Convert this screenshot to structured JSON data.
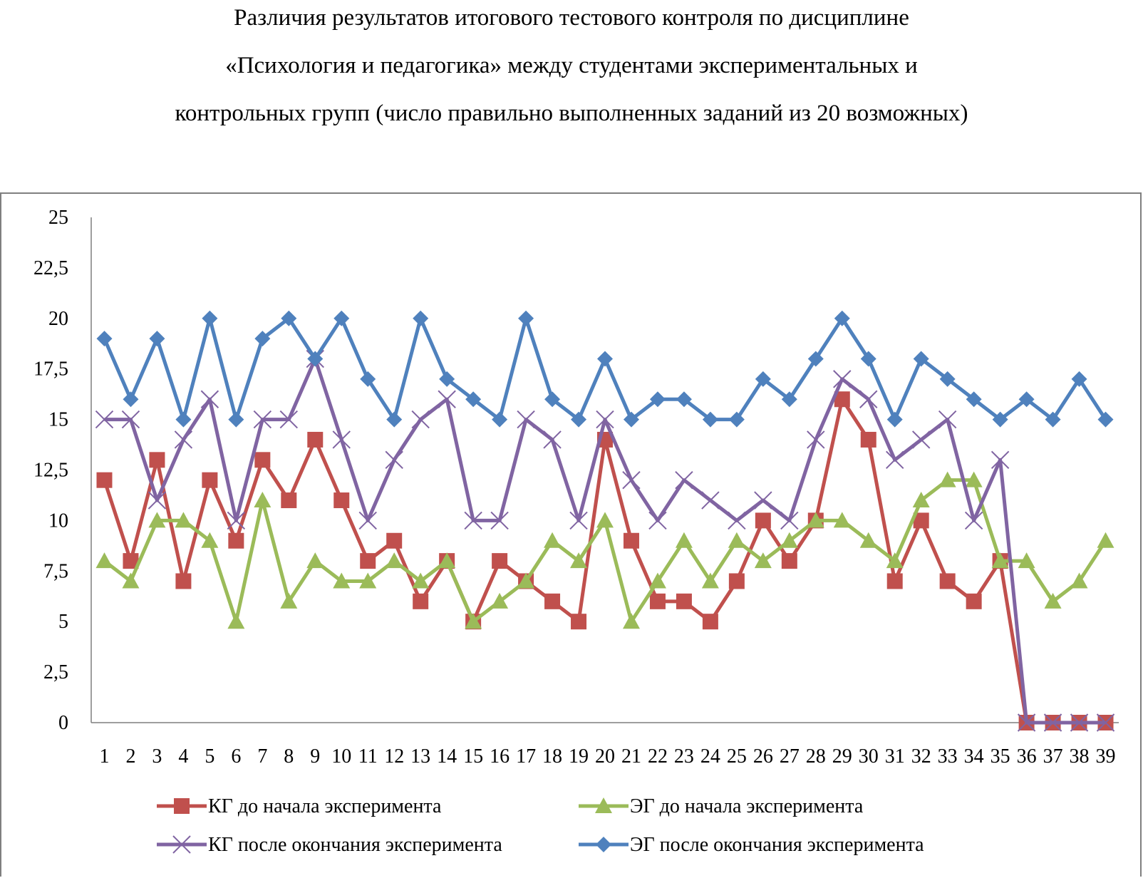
{
  "chart_data": {
    "type": "line",
    "title": [
      "Различия результатов итогового тестового контроля по дисциплине",
      "«Психология и педагогика» между студентами экспериментальных и",
      "контрольных групп (число правильно выполненных заданий из 20 возможных)"
    ],
    "xlabel": "",
    "ylabel": "",
    "categories": [
      "1",
      "2",
      "3",
      "4",
      "5",
      "6",
      "7",
      "8",
      "9",
      "10",
      "11",
      "12",
      "13",
      "14",
      "15",
      "16",
      "17",
      "18",
      "19",
      "20",
      "21",
      "22",
      "23",
      "24",
      "25",
      "26",
      "27",
      "28",
      "29",
      "30",
      "31",
      "32",
      "33",
      "34",
      "35",
      "36",
      "37",
      "38",
      "39"
    ],
    "ylim": [
      0,
      25
    ],
    "yticks": [
      "0",
      "2,5",
      "5",
      "7,5",
      "10",
      "12,5",
      "15",
      "17,5",
      "20",
      "22,5",
      "25"
    ],
    "ytick_values": [
      0,
      2.5,
      5,
      7.5,
      10,
      12.5,
      15,
      17.5,
      20,
      22.5,
      25
    ],
    "grid": false,
    "legend_position": "bottom",
    "series": [
      {
        "name": "КГ до начала эксперимента",
        "color": "#c0504d",
        "marker": "square",
        "values": [
          12,
          8,
          13,
          7,
          12,
          9,
          13,
          11,
          14,
          11,
          8,
          9,
          6,
          8,
          5,
          8,
          7,
          6,
          5,
          14,
          9,
          6,
          6,
          5,
          7,
          10,
          8,
          10,
          16,
          14,
          7,
          10,
          7,
          6,
          8,
          0,
          0,
          0,
          0
        ]
      },
      {
        "name": "ЭГ до начала эксперимента",
        "color": "#9bbb59",
        "marker": "triangle",
        "values": [
          8,
          7,
          10,
          10,
          9,
          5,
          11,
          6,
          8,
          7,
          7,
          8,
          7,
          8,
          5,
          6,
          7,
          9,
          8,
          10,
          5,
          7,
          9,
          7,
          9,
          8,
          9,
          10,
          10,
          9,
          8,
          11,
          12,
          12,
          8,
          8,
          6,
          7,
          9
        ]
      },
      {
        "name": "КГ после окончания эксперимента",
        "color": "#8064a2",
        "marker": "x",
        "values": [
          15,
          15,
          11,
          14,
          16,
          10,
          15,
          15,
          18,
          14,
          10,
          13,
          15,
          16,
          10,
          10,
          15,
          14,
          10,
          15,
          12,
          10,
          12,
          11,
          10,
          11,
          10,
          14,
          17,
          16,
          13,
          14,
          15,
          10,
          13,
          0,
          0,
          0,
          0
        ]
      },
      {
        "name": "ЭГ после окончания эксперимента",
        "color": "#4f81bd",
        "marker": "diamond",
        "values": [
          19,
          16,
          19,
          15,
          20,
          15,
          19,
          20,
          18,
          20,
          17,
          15,
          20,
          17,
          16,
          15,
          20,
          16,
          15,
          18,
          15,
          16,
          16,
          15,
          15,
          17,
          16,
          18,
          20,
          18,
          15,
          18,
          17,
          16,
          15,
          16,
          15,
          17,
          15
        ]
      }
    ]
  }
}
